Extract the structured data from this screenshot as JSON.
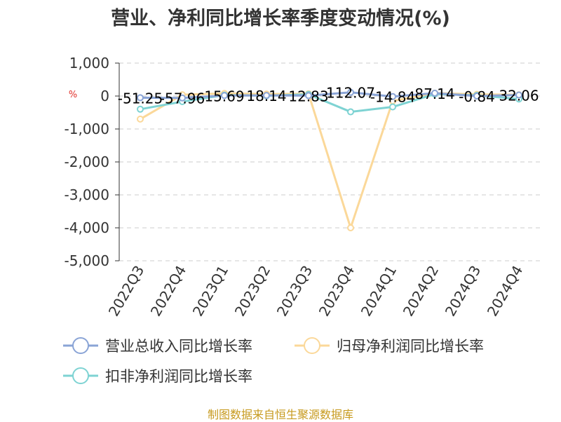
{
  "title": "营业、净利同比增长率季度变动情况(%)",
  "footer": "制图数据来自恒生聚源数据库",
  "unit": "%",
  "colors": {
    "revenue": "#8aa4d6",
    "netProfit": "#fbd899",
    "deductProfit": "#7ed3d3",
    "grid": "#cccccc",
    "axis": "#333333"
  },
  "chart_data": {
    "type": "line",
    "title": "营业、净利同比增长率季度变动情况(%)",
    "categories": [
      "2022Q3",
      "2022Q4",
      "2023Q1",
      "2023Q2",
      "2023Q3",
      "2023Q4",
      "2024Q1",
      "2024Q2",
      "2024Q3",
      "2024Q4"
    ],
    "ylim": [
      -5000,
      1000
    ],
    "yticks": [
      1000,
      0,
      -1000,
      -2000,
      -3000,
      -4000,
      -5000
    ],
    "ytick_labels": [
      "1,000",
      "0",
      "-1,000",
      "-2,000",
      "-3,000",
      "-4,000",
      "-5,000"
    ],
    "grid": true,
    "legend_position": "bottom",
    "series": [
      {
        "key": "revenue",
        "name": "营业总收入同比增长率",
        "values": [
          -51.25,
          -57.96,
          15.69,
          18.14,
          12.83,
          112.07,
          -14.84,
          87.14,
          -0.84,
          32.06
        ],
        "labels": [
          "-51.25",
          "-57.96",
          "15.69",
          "18.14",
          "12.83",
          "112.07",
          "-14.84",
          "87.14",
          "-0.84",
          "32.06"
        ]
      },
      {
        "key": "netProfit",
        "name": "归母净利润同比增长率",
        "values": [
          -700,
          40,
          80,
          60,
          70,
          -4000,
          -150,
          90,
          50,
          40
        ]
      },
      {
        "key": "deductProfit",
        "name": "扣非净利润同比增长率",
        "values": [
          -400,
          -170,
          30,
          10,
          50,
          -480,
          -330,
          60,
          20,
          -90
        ]
      }
    ]
  }
}
